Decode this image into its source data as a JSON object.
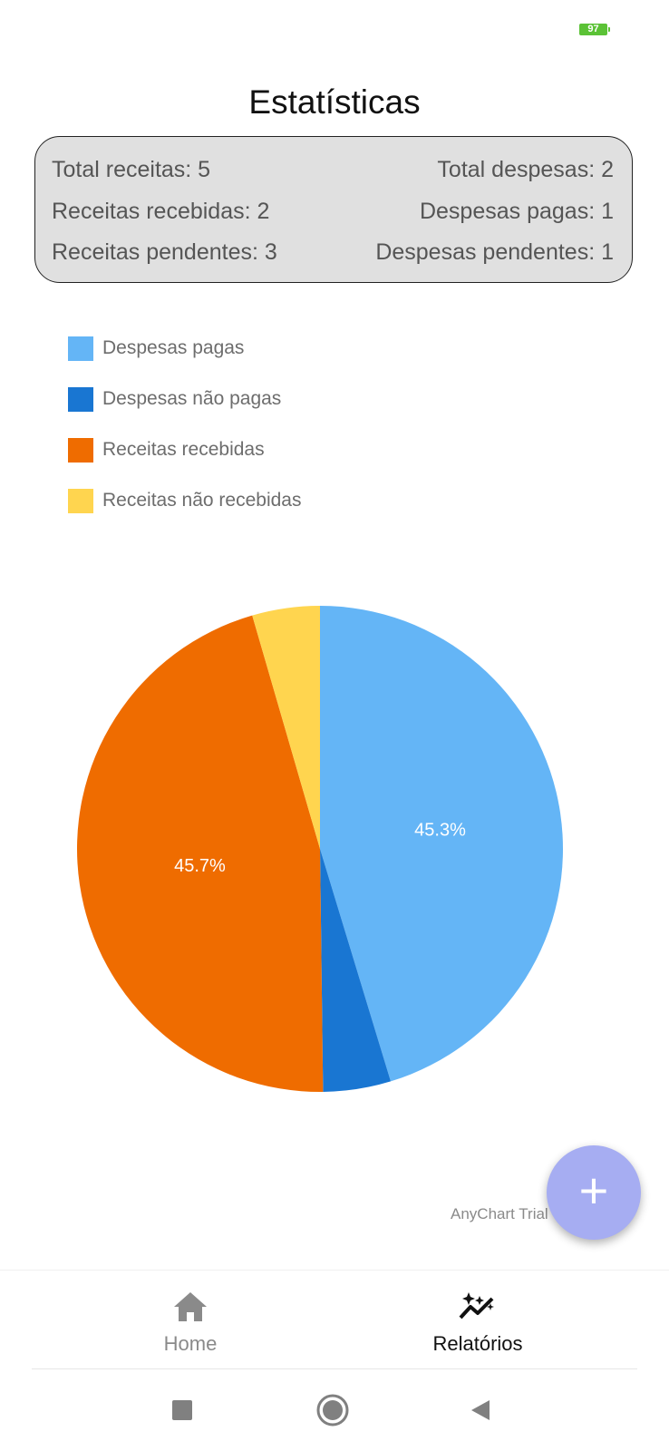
{
  "status_bar": {
    "battery_level": "97"
  },
  "page": {
    "title": "Estatísticas"
  },
  "stats": {
    "total_receitas": "Total receitas: 5",
    "total_despesas": "Total despesas: 2",
    "receitas_recebidas": "Receitas recebidas: 2",
    "despesas_pagas": "Despesas pagas: 1",
    "receitas_pendentes": "Receitas pendentes: 3",
    "despesas_pendentes": "Despesas pendentes: 1"
  },
  "chart_data": {
    "type": "pie",
    "labels": [
      "Despesas pagas",
      "Despesas não pagas",
      "Receitas recebidas",
      "Receitas não recebidas"
    ],
    "values": [
      45.3,
      4.5,
      45.7,
      4.5
    ],
    "colors": [
      "#64b5f6",
      "#1976d2",
      "#ef6c00",
      "#ffd54f"
    ],
    "data_labels": [
      "45.3%",
      "",
      "45.7%",
      ""
    ],
    "legend_position": "top-left",
    "credit": "AnyChart Trial"
  },
  "fab": {
    "label": "+"
  },
  "bottom_nav": {
    "items": [
      {
        "label": "Home",
        "icon": "home-icon"
      },
      {
        "label": "Relatórios",
        "icon": "sparkle-chart-icon"
      }
    ]
  },
  "system_nav": {
    "icons": [
      "square-icon",
      "circle-icon",
      "back-triangle-icon"
    ]
  }
}
